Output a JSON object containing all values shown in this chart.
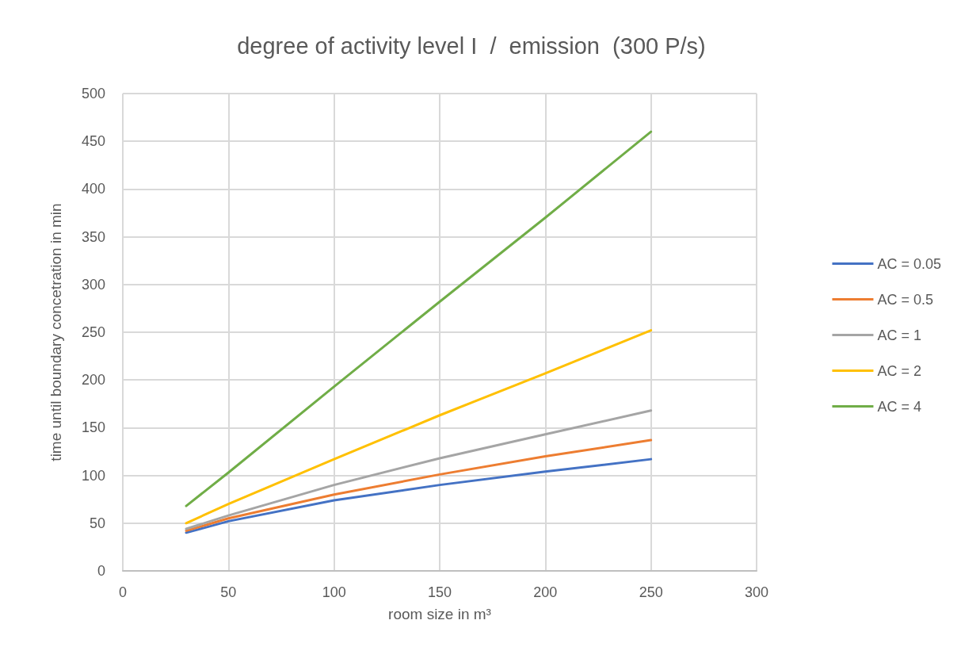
{
  "chart_data": {
    "type": "line",
    "title": "degree of activity level I  /  emission  (300 P/s)",
    "xlabel": "room size in m³",
    "ylabel": "time until boundary concetration in min",
    "x": [
      30,
      50,
      100,
      150,
      200,
      250
    ],
    "series": [
      {
        "name": "AC = 0.05",
        "color": "#4472c4",
        "values": [
          40,
          52,
          74,
          90,
          104,
          117
        ]
      },
      {
        "name": "AC = 0.5",
        "color": "#ed7d31",
        "values": [
          42,
          55,
          80,
          101,
          120,
          137
        ]
      },
      {
        "name": "AC = 1",
        "color": "#a5a5a5",
        "values": [
          44,
          58,
          90,
          118,
          143,
          168
        ]
      },
      {
        "name": "AC = 2",
        "color": "#ffc000",
        "values": [
          50,
          70,
          117,
          163,
          207,
          252
        ]
      },
      {
        "name": "AC = 4",
        "color": "#70ad47",
        "values": [
          68,
          103,
          193,
          282,
          370,
          460
        ]
      }
    ],
    "xlim": [
      0,
      300
    ],
    "xticks": [
      0,
      50,
      100,
      150,
      200,
      250,
      300
    ],
    "ylim": [
      0,
      500
    ],
    "yticks": [
      0,
      50,
      100,
      150,
      200,
      250,
      300,
      350,
      400,
      450,
      500
    ],
    "grid": true,
    "legend": "right",
    "marker": "none",
    "line_style": "solid"
  }
}
